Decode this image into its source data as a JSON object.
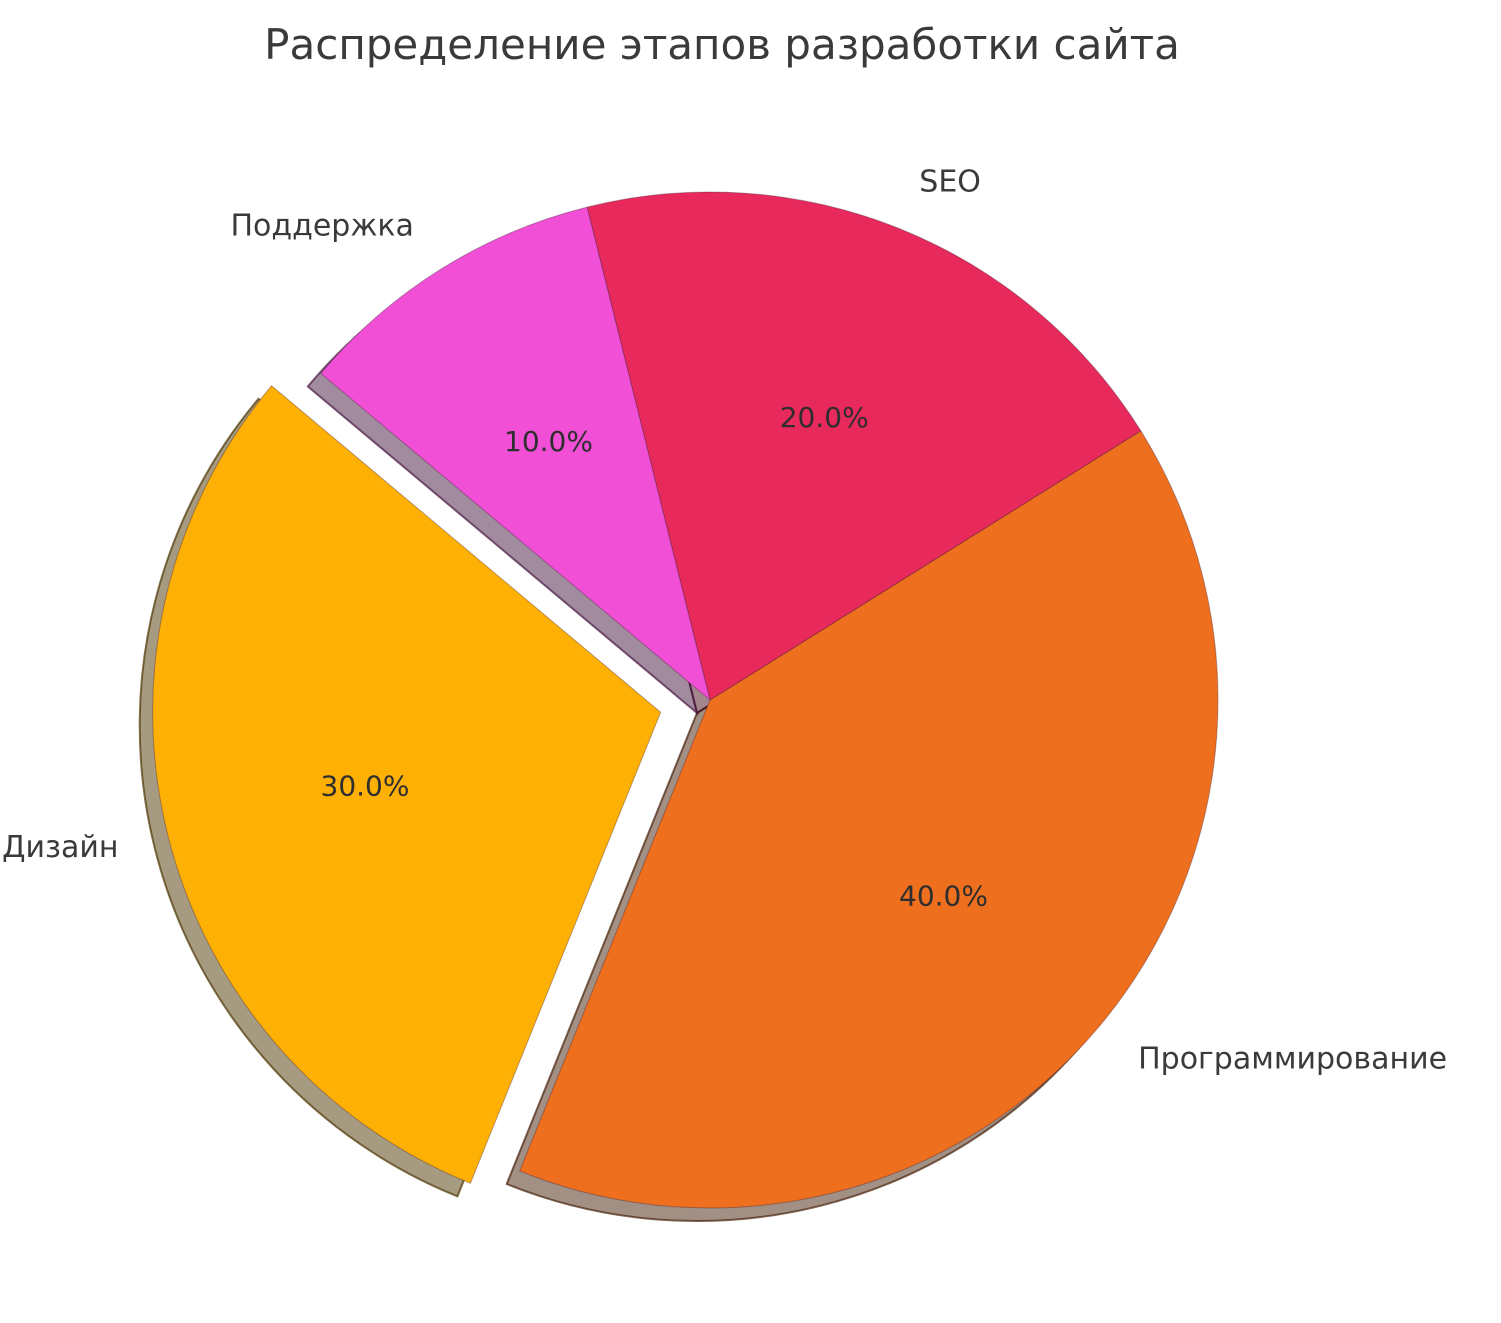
{
  "chart_data": {
    "type": "pie",
    "title": "Распределение этапов разработки сайта",
    "start_angle": 140,
    "counterclock": true,
    "shadow": true,
    "label_distance": 1.1,
    "pct_distance": 0.6,
    "legend_position": "none",
    "slices": [
      {
        "name": "design",
        "label": "Дизайн",
        "value": 30,
        "pct_label": "30.0%",
        "color": "#FFB005",
        "explode": 0.1
      },
      {
        "name": "programming",
        "label": "Программирование",
        "value": 40,
        "pct_label": "40.0%",
        "color": "#EE6F1E",
        "explode": 0
      },
      {
        "name": "seo",
        "label": "SEO",
        "value": 20,
        "pct_label": "20.0%",
        "color": "#E8295B",
        "explode": 0
      },
      {
        "name": "support",
        "label": "Поддержка",
        "value": 10,
        "pct_label": "10.0%",
        "color": "#F04FD6",
        "explode": 0
      }
    ]
  }
}
